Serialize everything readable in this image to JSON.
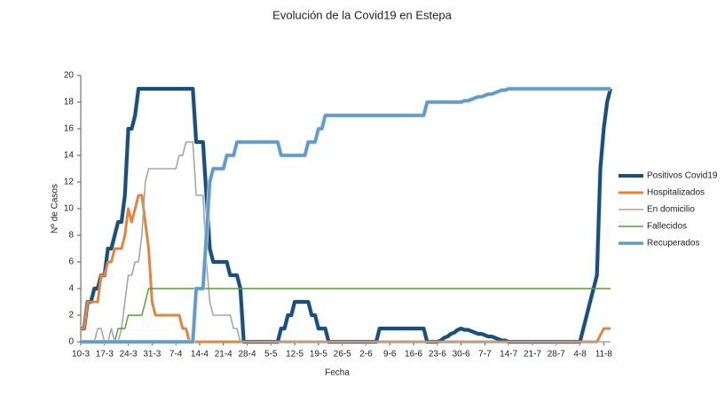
{
  "chart_data": {
    "type": "line",
    "title": "Evolución de la Covid19 en Estepa",
    "x_label": "Fecha",
    "y_label": "Nº de Casos",
    "categories": [
      "10-3",
      null,
      null,
      null,
      null,
      null,
      null,
      "17-3",
      null,
      null,
      null,
      null,
      null,
      null,
      "24-3",
      null,
      null,
      null,
      null,
      null,
      null,
      "31-3",
      null,
      null,
      null,
      null,
      null,
      null,
      "7-4",
      null,
      null,
      null,
      null,
      null,
      null,
      "14-4",
      null,
      null,
      null,
      null,
      null,
      null,
      "21-4",
      null,
      null,
      null,
      null,
      null,
      null,
      "28-4",
      null,
      null,
      null,
      null,
      null,
      null,
      "5-5",
      null,
      null,
      null,
      null,
      null,
      null,
      "12-5",
      null,
      null,
      null,
      null,
      null,
      null,
      "19-5",
      null,
      null,
      null,
      null,
      null,
      null,
      "26-5",
      null,
      null,
      null,
      null,
      null,
      null,
      "2-6",
      null,
      null,
      null,
      null,
      null,
      null,
      "9-6",
      null,
      null,
      null,
      null,
      null,
      null,
      "16-6",
      null,
      null,
      null,
      null,
      null,
      null,
      "23-6",
      null,
      null,
      null,
      null,
      null,
      null,
      "30-6",
      null,
      null,
      null,
      null,
      null,
      null,
      "7-7",
      null,
      null,
      null,
      null,
      null,
      null,
      "14-7",
      null,
      null,
      null,
      null,
      null,
      null,
      "21-7",
      null,
      null,
      null,
      null,
      null,
      null,
      "28-7",
      null,
      null,
      null,
      null,
      null,
      null,
      "4-8",
      null,
      null,
      null,
      null,
      null,
      null,
      "11-8",
      null,
      null
    ],
    "series": [
      {
        "name": "Positivos Covid19",
        "color": "#1b4f79",
        "values": [
          1,
          1,
          3,
          3,
          4,
          4,
          5,
          5,
          7,
          7,
          8,
          9,
          9,
          11,
          16,
          16,
          17,
          19,
          19,
          19,
          19,
          19,
          19,
          19,
          19,
          19,
          19,
          19,
          19,
          19,
          19,
          19,
          19,
          19,
          15,
          15,
          15,
          11,
          7,
          6,
          6,
          6,
          6,
          6,
          5,
          5,
          5,
          4,
          0,
          0,
          0,
          0,
          0,
          0,
          0,
          0,
          0,
          0,
          0,
          1,
          1,
          2,
          2,
          3,
          3,
          3,
          3,
          3,
          2,
          2,
          1,
          1,
          1,
          0,
          0,
          0,
          0,
          0,
          0,
          0,
          0,
          0,
          0,
          0,
          0,
          0,
          0,
          0,
          1,
          1,
          1,
          1,
          1,
          1,
          1,
          1,
          1,
          1,
          1,
          1,
          1,
          1,
          0,
          0,
          0,
          0,
          0.1,
          0.3,
          0.4,
          0.6,
          0.7,
          0.9,
          1,
          0.9,
          0.9,
          0.8,
          0.7,
          0.6,
          0.6,
          0.5,
          0.4,
          0.4,
          0.3,
          0.2,
          0.1,
          0.1,
          0,
          0,
          0,
          0,
          0,
          0,
          0,
          0,
          0,
          0,
          0,
          0,
          0,
          0,
          0,
          0,
          0,
          0,
          0,
          0,
          0,
          0,
          1,
          2,
          3,
          4,
          5,
          13,
          16,
          18,
          19
        ]
      },
      {
        "name": "Hospitalizados",
        "color": "#e2843f",
        "values": [
          1,
          1,
          3,
          3,
          3,
          3,
          5,
          5,
          6,
          6,
          7,
          7,
          7,
          8,
          10,
          9,
          10,
          11,
          11,
          9,
          7,
          3,
          2,
          2,
          2,
          2,
          2,
          2,
          2,
          2,
          1,
          1,
          0,
          0,
          0,
          0,
          0,
          0,
          0,
          0,
          0,
          0,
          0,
          0,
          0,
          0,
          0,
          0,
          0,
          0,
          0,
          0,
          0,
          0,
          0,
          0,
          0,
          0,
          0,
          0,
          0,
          0,
          0,
          0,
          0,
          0,
          0,
          0,
          0,
          0,
          0,
          0,
          0,
          0,
          0,
          0,
          0,
          0,
          0,
          0,
          0,
          0,
          0,
          0,
          0,
          0,
          0,
          0,
          0,
          0,
          0,
          0,
          0,
          0,
          0,
          0,
          0,
          0,
          0,
          0,
          0,
          0,
          0,
          0,
          0,
          0,
          0,
          0,
          0,
          0,
          0,
          0,
          0,
          0,
          0,
          0,
          0,
          0,
          0,
          0,
          0,
          0,
          0,
          0,
          0,
          0,
          0,
          0,
          0,
          0,
          0,
          0,
          0,
          0,
          0,
          0,
          0,
          0,
          0,
          0,
          0,
          0,
          0,
          0,
          0,
          0,
          0,
          0,
          0,
          0,
          0,
          0,
          0,
          0.5,
          1,
          1,
          1
        ]
      },
      {
        "name": "En domicilio",
        "color": "#a6a6a6",
        "values": [
          0,
          0,
          0,
          0,
          0,
          1,
          1,
          0,
          0,
          1,
          0,
          0,
          1,
          3,
          5,
          5,
          6,
          6,
          8,
          12,
          13,
          13,
          13,
          13,
          13,
          13,
          13,
          13,
          13,
          14,
          14,
          15,
          15,
          15,
          11,
          11,
          11,
          6,
          3,
          2,
          2,
          2,
          2,
          2,
          2,
          1,
          1,
          0,
          0,
          0,
          0,
          0,
          0,
          0,
          0,
          0,
          0,
          0,
          0,
          0,
          0,
          0,
          0,
          0,
          0,
          0,
          0,
          0,
          0,
          0,
          0,
          0,
          0,
          0,
          0,
          0,
          0,
          0,
          0,
          0,
          0,
          0,
          0,
          0,
          0,
          0,
          0,
          0,
          0,
          0,
          0,
          0,
          0,
          0,
          0,
          0,
          0,
          0,
          0,
          0,
          0,
          0,
          0,
          0,
          0,
          0,
          0,
          0,
          0,
          0,
          0,
          0,
          0,
          0,
          0,
          0,
          0,
          0,
          0,
          0,
          0,
          0,
          0,
          0,
          0,
          0,
          0,
          0,
          0,
          0,
          0,
          0,
          0,
          0,
          0,
          0,
          0,
          0,
          0,
          0,
          0,
          0,
          0,
          0,
          0,
          0,
          0,
          0,
          0,
          0,
          0,
          0,
          0,
          0,
          0,
          0,
          0
        ]
      },
      {
        "name": "Fallecidos",
        "color": "#56a030",
        "values": [
          0,
          0,
          0,
          0,
          0,
          0,
          0,
          0,
          0,
          0,
          0,
          1,
          1,
          1,
          2,
          2,
          2,
          2,
          2,
          3,
          4,
          4,
          4,
          4,
          4,
          4,
          4,
          4,
          4,
          4,
          4,
          4,
          4,
          4,
          4,
          4,
          4,
          4,
          4,
          4,
          4,
          4,
          4,
          4,
          4,
          4,
          4,
          4,
          4,
          4,
          4,
          4,
          4,
          4,
          4,
          4,
          4,
          4,
          4,
          4,
          4,
          4,
          4,
          4,
          4,
          4,
          4,
          4,
          4,
          4,
          4,
          4,
          4,
          4,
          4,
          4,
          4,
          4,
          4,
          4,
          4,
          4,
          4,
          4,
          4,
          4,
          4,
          4,
          4,
          4,
          4,
          4,
          4,
          4,
          4,
          4,
          4,
          4,
          4,
          4,
          4,
          4,
          4,
          4,
          4,
          4,
          4,
          4,
          4,
          4,
          4,
          4,
          4,
          4,
          4,
          4,
          4,
          4,
          4,
          4,
          4,
          4,
          4,
          4,
          4,
          4,
          4,
          4,
          4,
          4,
          4,
          4,
          4,
          4,
          4,
          4,
          4,
          4,
          4,
          4,
          4,
          4,
          4,
          4,
          4,
          4,
          4,
          4,
          4,
          4,
          4,
          4,
          4,
          4,
          4,
          4,
          4
        ]
      },
      {
        "name": "Recuperados",
        "color": "#5f9bc6",
        "values": [
          0,
          0,
          0,
          0,
          0,
          0,
          0,
          0,
          0,
          0,
          0,
          0,
          0,
          0,
          0,
          0,
          0,
          0,
          0,
          0,
          0,
          0,
          0,
          0,
          0,
          0,
          0,
          0,
          0,
          0,
          0,
          0,
          0,
          0,
          4,
          4,
          4,
          8,
          12,
          13,
          13,
          13,
          13,
          14,
          14,
          14,
          15,
          15,
          15,
          15,
          15,
          15,
          15,
          15,
          15,
          15,
          15,
          15,
          15,
          14,
          14,
          14,
          14,
          14,
          14,
          14,
          14,
          15,
          15,
          15,
          16,
          16,
          17,
          17,
          17,
          17,
          17,
          17,
          17,
          17,
          17,
          17,
          17,
          17,
          17,
          17,
          17,
          17,
          17,
          17,
          17,
          17,
          17,
          17,
          17,
          17,
          17,
          17,
          17,
          17,
          17,
          17,
          18,
          18,
          18,
          18,
          18,
          18,
          18,
          18,
          18,
          18,
          18,
          18.1,
          18.1,
          18.2,
          18.3,
          18.4,
          18.4,
          18.5,
          18.6,
          18.6,
          18.7,
          18.8,
          18.9,
          18.9,
          19,
          19,
          19,
          19,
          19,
          19,
          19,
          19,
          19,
          19,
          19,
          19,
          19,
          19,
          19,
          19,
          19,
          19,
          19,
          19,
          19,
          19,
          19,
          19,
          19,
          19,
          19,
          19,
          19,
          19,
          19
        ]
      }
    ],
    "ylim": [
      0,
      20
    ],
    "yticks": [
      0,
      2,
      4,
      6,
      8,
      10,
      12,
      14,
      16,
      18,
      20
    ],
    "grid": false,
    "legend": "right"
  }
}
